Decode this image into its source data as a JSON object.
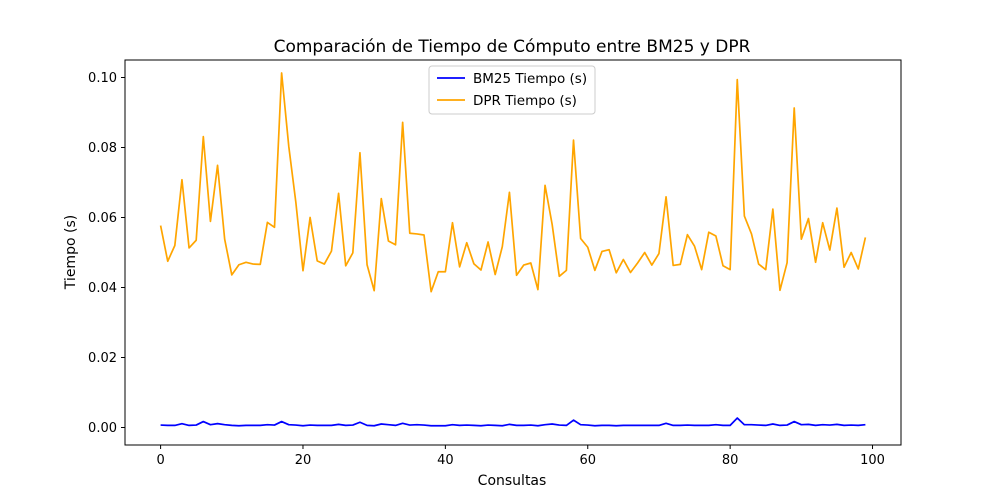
{
  "chart_data": {
    "type": "line",
    "title": "Comparación de Tiempo de Cómputo entre BM25 y DPR",
    "xlabel": "Consultas",
    "ylabel": "Tiempo (s)",
    "xlim": [
      -5,
      104
    ],
    "ylim": [
      -0.005,
      0.105
    ],
    "x_ticks": [
      0,
      20,
      40,
      60,
      80,
      100
    ],
    "x_tick_labels": [
      "0",
      "20",
      "40",
      "60",
      "80",
      "100"
    ],
    "y_ticks": [
      0.0,
      0.02,
      0.04,
      0.06,
      0.08,
      0.1
    ],
    "y_tick_labels": [
      "0.00",
      "0.02",
      "0.04",
      "0.06",
      "0.08",
      "0.10"
    ],
    "grid": false,
    "legend_position": "top-center",
    "x": [
      0,
      1,
      2,
      3,
      4,
      5,
      6,
      7,
      8,
      9,
      10,
      11,
      12,
      13,
      14,
      15,
      16,
      17,
      18,
      19,
      20,
      21,
      22,
      23,
      24,
      25,
      26,
      27,
      28,
      29,
      30,
      31,
      32,
      33,
      34,
      35,
      36,
      37,
      38,
      39,
      40,
      41,
      42,
      43,
      44,
      45,
      46,
      47,
      48,
      49,
      50,
      51,
      52,
      53,
      54,
      55,
      56,
      57,
      58,
      59,
      60,
      61,
      62,
      63,
      64,
      65,
      66,
      67,
      68,
      69,
      70,
      71,
      72,
      73,
      74,
      75,
      76,
      77,
      78,
      79,
      80,
      81,
      82,
      83,
      84,
      85,
      86,
      87,
      88,
      89,
      90,
      91,
      92,
      93,
      94,
      95,
      96,
      97,
      98,
      99
    ],
    "series": [
      {
        "name": "BM25 Tiempo (s)",
        "color": "#0000ff",
        "values": [
          0.0007,
          0.0006,
          0.0006,
          0.0011,
          0.0006,
          0.0007,
          0.0017,
          0.0008,
          0.0011,
          0.0008,
          0.0006,
          0.0005,
          0.0006,
          0.0006,
          0.0006,
          0.0008,
          0.0007,
          0.0017,
          0.0008,
          0.0007,
          0.0005,
          0.0007,
          0.0006,
          0.0006,
          0.0006,
          0.0009,
          0.0006,
          0.0007,
          0.0015,
          0.0006,
          0.0005,
          0.001,
          0.0008,
          0.0006,
          0.0012,
          0.0007,
          0.0008,
          0.0007,
          0.0005,
          0.0005,
          0.0005,
          0.0008,
          0.0006,
          0.0007,
          0.0006,
          0.0005,
          0.0007,
          0.0006,
          0.0005,
          0.0009,
          0.0006,
          0.0006,
          0.0007,
          0.0005,
          0.0008,
          0.001,
          0.0007,
          0.0006,
          0.0021,
          0.0008,
          0.0007,
          0.0005,
          0.0006,
          0.0006,
          0.0005,
          0.0006,
          0.0006,
          0.0006,
          0.0006,
          0.0006,
          0.0006,
          0.0012,
          0.0006,
          0.0006,
          0.0007,
          0.0006,
          0.0006,
          0.0006,
          0.0008,
          0.0006,
          0.0006,
          0.0027,
          0.0008,
          0.0008,
          0.0007,
          0.0006,
          0.001,
          0.0006,
          0.0007,
          0.0017,
          0.0008,
          0.0009,
          0.0006,
          0.0008,
          0.0007,
          0.0009,
          0.0006,
          0.0007,
          0.0006,
          0.0008
        ]
      },
      {
        "name": "DPR Tiempo (s)",
        "color": "#ffa500",
        "values": [
          0.0577,
          0.0475,
          0.052,
          0.0708,
          0.0513,
          0.0535,
          0.0831,
          0.0589,
          0.0749,
          0.0538,
          0.0436,
          0.0465,
          0.0472,
          0.0467,
          0.0466,
          0.0586,
          0.0572,
          0.1013,
          0.0804,
          0.0643,
          0.0448,
          0.06,
          0.0476,
          0.0467,
          0.0504,
          0.0669,
          0.0462,
          0.0499,
          0.0785,
          0.0465,
          0.0391,
          0.0654,
          0.0533,
          0.0522,
          0.0872,
          0.0555,
          0.0553,
          0.055,
          0.0388,
          0.0445,
          0.0445,
          0.0585,
          0.0459,
          0.0528,
          0.0468,
          0.045,
          0.053,
          0.0437,
          0.0517,
          0.0672,
          0.0435,
          0.0464,
          0.047,
          0.0394,
          0.0692,
          0.058,
          0.0432,
          0.0449,
          0.0821,
          0.054,
          0.0515,
          0.0449,
          0.0503,
          0.0508,
          0.0442,
          0.048,
          0.0443,
          0.047,
          0.05,
          0.0464,
          0.0497,
          0.0659,
          0.0463,
          0.0466,
          0.0551,
          0.0518,
          0.0451,
          0.0558,
          0.0547,
          0.0462,
          0.0451,
          0.0994,
          0.0604,
          0.0553,
          0.0467,
          0.0451,
          0.0624,
          0.0392,
          0.0471,
          0.0913,
          0.0538,
          0.0597,
          0.0472,
          0.0585,
          0.0507,
          0.0627,
          0.0458,
          0.05,
          0.0453,
          0.0543
        ]
      }
    ]
  }
}
